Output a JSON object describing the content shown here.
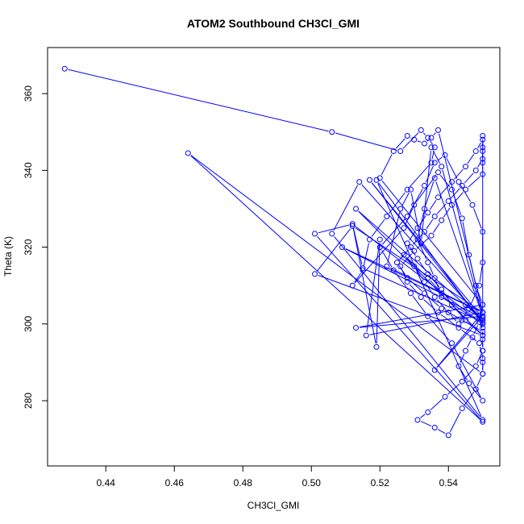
{
  "chart_data": {
    "type": "scatter",
    "title": "ATOM2 Southbound CH3Cl_GMI",
    "xlabel": "CH3Cl_GMI",
    "ylabel": "Theta (K)",
    "xlim": [
      0.423,
      0.555
    ],
    "ylim": [
      263,
      372
    ],
    "xticks": [
      0.44,
      0.46,
      0.48,
      0.5,
      0.52,
      0.54
    ],
    "xtick_labels": [
      "0.44",
      "0.46",
      "0.48",
      "0.50",
      "0.52",
      "0.54"
    ],
    "yticks": [
      280,
      300,
      320,
      340,
      360
    ],
    "ytick_labels": [
      "280",
      "300",
      "320",
      "340",
      "360"
    ],
    "grid": false,
    "legend": "none",
    "series_color": "#0000ff",
    "series": [
      {
        "style": "points-and-lines",
        "x": [
          0.428,
          0.506,
          0.526,
          0.532,
          0.534,
          0.536,
          0.535,
          0.528,
          0.522,
          0.517,
          0.515,
          0.512,
          0.527,
          0.53,
          0.537,
          0.541,
          0.544,
          0.546,
          0.548,
          0.55,
          0.549,
          0.547,
          0.545,
          0.543,
          0.546,
          0.55,
          0.541,
          0.534,
          0.529,
          0.524,
          0.52,
          0.528,
          0.533,
          0.536,
          0.539,
          0.543,
          0.547,
          0.55,
          0.55,
          0.549,
          0.546,
          0.543,
          0.54,
          0.536,
          0.533,
          0.53,
          0.527,
          0.534,
          0.538,
          0.545,
          0.549,
          0.55,
          0.544,
          0.538,
          0.533,
          0.528,
          0.525,
          0.529,
          0.533,
          0.536,
          0.54,
          0.544,
          0.548,
          0.55,
          0.55,
          0.55,
          0.548,
          0.545,
          0.541,
          0.537,
          0.534,
          0.531,
          0.528,
          0.531,
          0.534,
          0.538,
          0.541,
          0.545,
          0.55,
          0.55,
          0.548,
          0.544,
          0.539,
          0.534,
          0.531,
          0.536,
          0.54,
          0.544,
          0.548,
          0.55,
          0.55,
          0.549,
          0.543,
          0.537,
          0.532,
          0.528,
          0.526,
          0.53,
          0.535,
          0.538,
          0.541,
          0.545,
          0.55,
          0.55,
          0.55,
          0.55,
          0.55,
          0.55,
          0.55,
          0.55,
          0.55,
          0.55,
          0.464,
          0.55,
          0.501,
          0.512,
          0.55,
          0.519,
          0.55,
          0.506,
          0.514,
          0.55,
          0.513,
          0.55,
          0.501,
          0.512,
          0.55,
          0.509,
          0.55,
          0.517,
          0.55,
          0.515,
          0.512,
          0.519,
          0.52,
          0.516,
          0.55,
          0.536,
          0.55,
          0.513,
          0.55,
          0.52,
          0.524,
          0.528,
          0.53,
          0.533,
          0.535,
          0.537,
          0.55,
          0.522,
          0.526,
          0.529,
          0.532,
          0.535,
          0.538,
          0.55,
          0.536,
          0.533,
          0.531,
          0.534,
          0.536,
          0.538,
          0.55
        ],
        "y": [
          366.5,
          350.0,
          345.0,
          350.5,
          348.5,
          346.0,
          342.0,
          335.0,
          328.0,
          322.0,
          314.0,
          310.0,
          325.0,
          331.0,
          339.5,
          335.0,
          327.5,
          318.0,
          310.0,
          305.0,
          300.5,
          296.5,
          293.0,
          289.0,
          284.5,
          280.0,
          295.0,
          302.0,
          308.0,
          314.0,
          320.0,
          328.0,
          336.0,
          342.0,
          344.0,
          337.0,
          331.0,
          324.0,
          316.0,
          310.0,
          304.0,
          300.0,
          303.0,
          307.0,
          311.0,
          315.0,
          318.0,
          312.0,
          308.0,
          305.0,
          302.0,
          298.0,
          301.0,
          304.0,
          308.0,
          312.0,
          316.0,
          320.0,
          324.0,
          328.0,
          332.0,
          336.0,
          340.0,
          343.0,
          346.0,
          348.0,
          345.0,
          341.0,
          337.0,
          333.0,
          329.0,
          325.0,
          321.0,
          317.0,
          313.0,
          309.0,
          305.0,
          301.0,
          297.0,
          293.0,
          289.0,
          285.0,
          281.0,
          277.0,
          275.0,
          273.0,
          271.0,
          278.0,
          283.0,
          287.0,
          291.0,
          295.0,
          299.0,
          303.0,
          307.0,
          311.0,
          315.0,
          319.0,
          323.0,
          327.0,
          331.0,
          335.0,
          339.0,
          342.0,
          345.0,
          349.0,
          302.0,
          299.0,
          296.0,
          293.0,
          290.0,
          287.0,
          344.5,
          274.5,
          323.5,
          326.0,
          300.0,
          337.5,
          275.0,
          323.5,
          337.0,
          301.0,
          330.0,
          297.0,
          313.0,
          325.5,
          303.0,
          320.0,
          301.5,
          337.5,
          300.5,
          314.5,
          326.0,
          294.0,
          322.0,
          297.0,
          303.0,
          288.0,
          302.0,
          299.0,
          305.0,
          338.0,
          345.0,
          349.0,
          348.0,
          347.0,
          348.5,
          350.5,
          303.0,
          315.0,
          330.0,
          335.0,
          321.0,
          346.0,
          341.0,
          302.0,
          338.0,
          330.0,
          322.0,
          316.0,
          312.0,
          307.0,
          300.0
        ]
      }
    ]
  }
}
